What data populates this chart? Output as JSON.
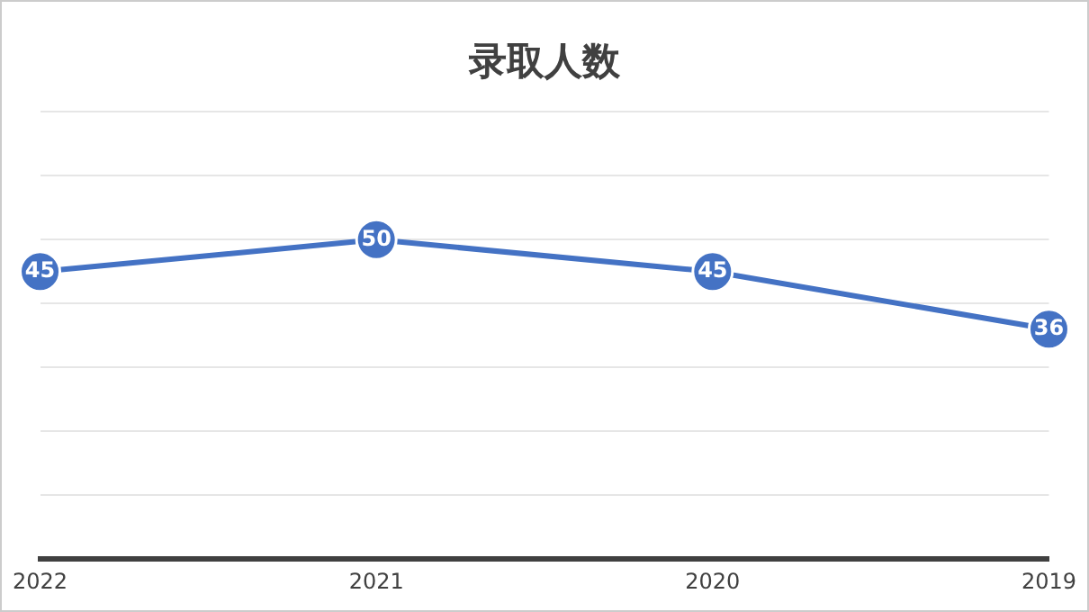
{
  "chart_data": {
    "type": "line",
    "title": "录取人数",
    "categories": [
      "2022",
      "2021",
      "2020",
      "2019"
    ],
    "series": [
      {
        "color": "#4472c4",
        "values": [
          45,
          50,
          45,
          36
        ]
      }
    ],
    "ylim": [
      0,
      70
    ],
    "yticks": [
      {
        "value": 0,
        "label": null
      },
      {
        "value": 10,
        "label": null
      },
      {
        "value": 20,
        "label": null
      },
      {
        "value": 30,
        "label": null
      },
      {
        "value": 40,
        "label": null
      },
      {
        "value": 50,
        "label": null
      },
      {
        "value": 60,
        "label": null
      },
      {
        "value": 70,
        "label": null
      }
    ],
    "tick_labels": "x",
    "grid": "y",
    "legend": false,
    "marker": "circle",
    "line_style": "solid",
    "data_labels": true
  }
}
